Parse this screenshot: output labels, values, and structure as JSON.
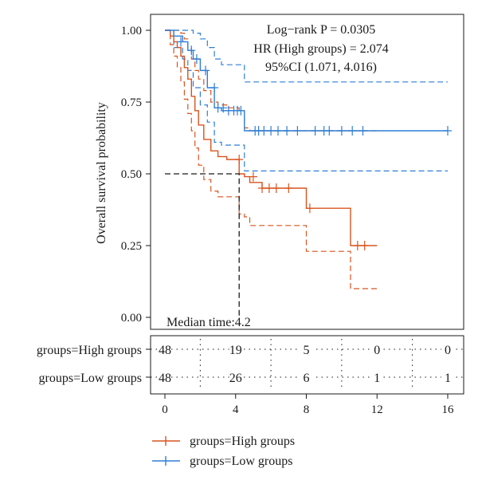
{
  "chart_data": {
    "type": "line",
    "subtype": "kaplan-meier",
    "title": "",
    "xlabel": "",
    "ylabel": "Overall survival probability",
    "xlim": [
      0,
      16
    ],
    "ylim": [
      0,
      1
    ],
    "xticks": [
      0,
      4,
      8,
      12,
      16
    ],
    "yticks": [
      0.0,
      0.25,
      0.5,
      0.75,
      1.0
    ],
    "grid": false,
    "legend_position": "bottom-left",
    "annotations": {
      "logrank": "Log−rank P = 0.0305",
      "hr": "HR (High groups) = 2.074",
      "ci": "95%CI (1.071, 4.016)",
      "median": "Median time:4.2"
    },
    "median": {
      "x": 4.2,
      "y": 0.5
    },
    "series": [
      {
        "name": "groups=High groups",
        "color": "#d9541e",
        "x": [
          0,
          0.3,
          0.5,
          0.7,
          0.9,
          1.1,
          1.3,
          1.5,
          1.7,
          1.9,
          2.2,
          2.6,
          3.0,
          3.5,
          4.2,
          4.5,
          4.8,
          5.5,
          6.5,
          7.0,
          8.0,
          10.5,
          12.0
        ],
        "y": [
          1.0,
          0.98,
          0.96,
          0.94,
          0.91,
          0.87,
          0.83,
          0.77,
          0.72,
          0.67,
          0.62,
          0.58,
          0.56,
          0.55,
          0.5,
          0.49,
          0.47,
          0.45,
          0.45,
          0.45,
          0.38,
          0.25,
          0.25
        ],
        "ci_upper": [
          1.0,
          1.0,
          1.0,
          1.0,
          0.99,
          0.97,
          0.94,
          0.9,
          0.86,
          0.83,
          0.79,
          0.75,
          0.74,
          0.73,
          0.72,
          0.66,
          0.65,
          0.65,
          0.65,
          0.65,
          0.65,
          0.65,
          0.65
        ],
        "ci_lower": [
          1.0,
          0.95,
          0.91,
          0.87,
          0.82,
          0.76,
          0.71,
          0.65,
          0.59,
          0.53,
          0.48,
          0.44,
          0.42,
          0.42,
          0.36,
          0.35,
          0.32,
          0.32,
          0.32,
          0.32,
          0.23,
          0.1,
          0.1
        ],
        "censored_x": [
          4.2,
          5.0,
          5.5,
          5.9,
          6.3,
          7.0,
          8.2,
          10.9,
          11.3
        ],
        "censored_y": [
          0.55,
          0.49,
          0.45,
          0.45,
          0.45,
          0.45,
          0.38,
          0.25,
          0.25
        ]
      },
      {
        "name": "groups=Low groups",
        "color": "#2f7ed8",
        "x": [
          0,
          0.5,
          1.0,
          1.3,
          1.6,
          2.0,
          2.4,
          2.8,
          3.2,
          4.5,
          16.0
        ],
        "y": [
          1.0,
          0.98,
          0.96,
          0.93,
          0.9,
          0.86,
          0.8,
          0.73,
          0.72,
          0.65,
          0.65
        ],
        "ci_upper": [
          1.0,
          1.0,
          1.0,
          1.0,
          0.99,
          0.97,
          0.94,
          0.9,
          0.88,
          0.82,
          0.82
        ],
        "ci_lower": [
          1.0,
          0.94,
          0.9,
          0.86,
          0.8,
          0.74,
          0.68,
          0.61,
          0.6,
          0.51,
          0.51
        ],
        "censored_x": [
          0.9,
          1.5,
          1.8,
          2.3,
          2.8,
          3.0,
          3.3,
          3.6,
          3.9,
          4.1,
          4.3,
          5.1,
          5.3,
          5.6,
          6.0,
          6.4,
          6.9,
          7.5,
          8.5,
          9.0,
          9.3,
          10.0,
          10.6,
          11.2,
          16.0
        ],
        "censored_y": [
          0.96,
          0.93,
          0.9,
          0.86,
          0.8,
          0.73,
          0.73,
          0.72,
          0.72,
          0.72,
          0.72,
          0.65,
          0.65,
          0.65,
          0.65,
          0.65,
          0.65,
          0.65,
          0.65,
          0.65,
          0.65,
          0.65,
          0.65,
          0.65,
          0.65
        ]
      }
    ],
    "risk_table": {
      "times": [
        0,
        4,
        8,
        12,
        16
      ],
      "rows": [
        {
          "label": "groups=High groups",
          "counts": [
            "48",
            "19",
            "5",
            "0",
            "0"
          ]
        },
        {
          "label": "groups=Low groups",
          "counts": [
            "48",
            "26",
            "6",
            "1",
            "1"
          ]
        }
      ]
    }
  }
}
